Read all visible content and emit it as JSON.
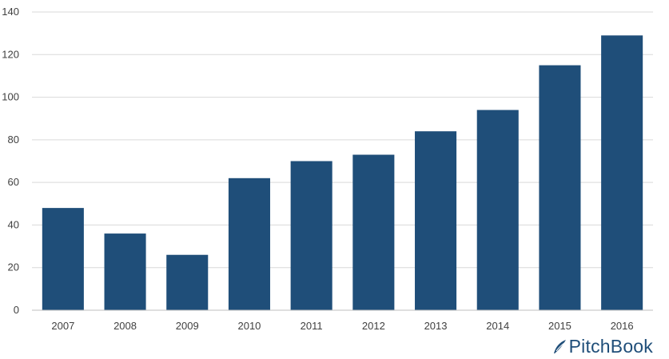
{
  "chart_data": {
    "type": "bar",
    "categories": [
      "2007",
      "2008",
      "2009",
      "2010",
      "2011",
      "2012",
      "2013",
      "2014",
      "2015",
      "2016"
    ],
    "values": [
      48,
      36,
      26,
      62,
      70,
      73,
      84,
      94,
      115,
      129
    ],
    "ylim": [
      0,
      140
    ],
    "yticks": [
      0,
      20,
      40,
      60,
      80,
      100,
      120,
      140
    ],
    "grid": true,
    "bar_color": "#1f4e79",
    "grid_color": "#d9d9d9"
  },
  "branding": {
    "logo_text": "PitchBook",
    "logo_icon": "pitchbook-leaf-icon",
    "logo_color": "#1f4e79"
  }
}
